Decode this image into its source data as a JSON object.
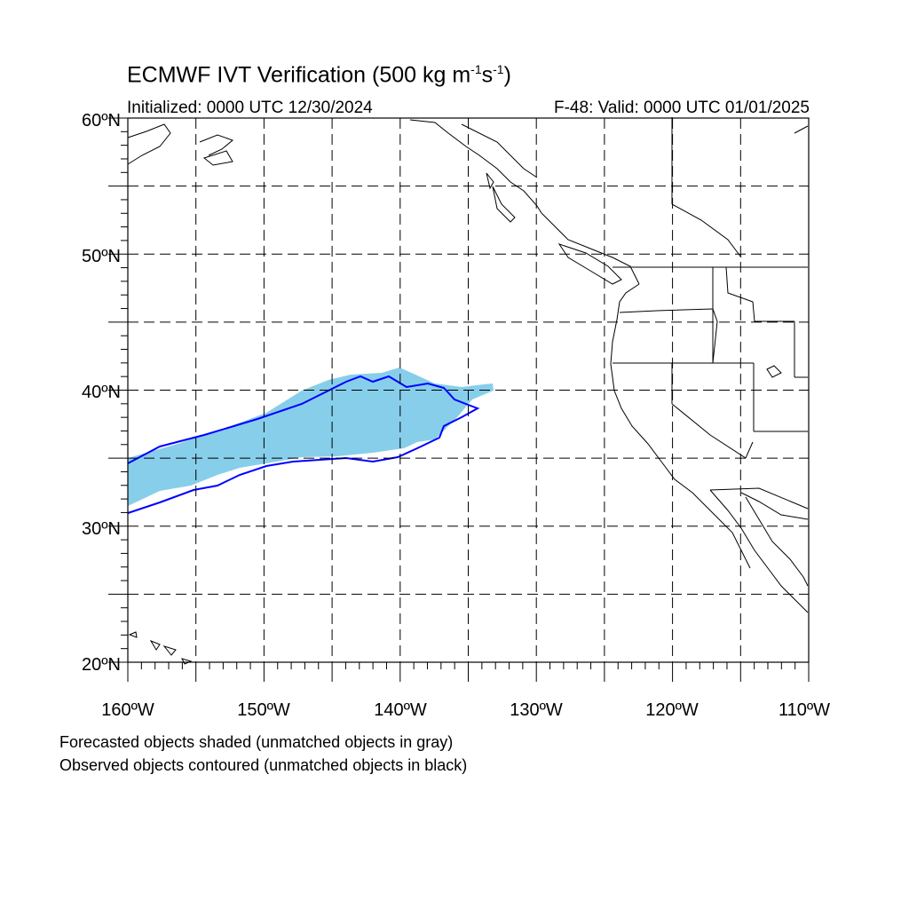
{
  "title": {
    "main": "ECMWF IVT Verification (500 kg m",
    "exp1": "-1",
    "mid": "s",
    "exp2": "-1",
    "end": ")"
  },
  "initialized": "Initialized: 0000 UTC 12/30/2024",
  "valid": "F-48: Valid: 0000 UTC 01/01/2025",
  "map": {
    "lon_range": [
      -160,
      -110
    ],
    "lat_range": [
      20,
      60
    ],
    "grid": "dashed every 5 degrees",
    "lat_labels": [
      "20ºN",
      "30ºN",
      "40ºN",
      "50ºN",
      "60ºN"
    ],
    "lon_labels": [
      "160ºW",
      "150ºW",
      "140ºW",
      "130ºW",
      "120ºW",
      "110ºW"
    ],
    "forecast_object_color": "#87ceeb",
    "observed_contour_color": "#0000ff",
    "coastline_color": "#000000"
  },
  "legend": {
    "line1": "Forecasted objects shaded (unmatched objects in gray)",
    "line2": "Observed objects contoured (unmatched objects in black)"
  }
}
